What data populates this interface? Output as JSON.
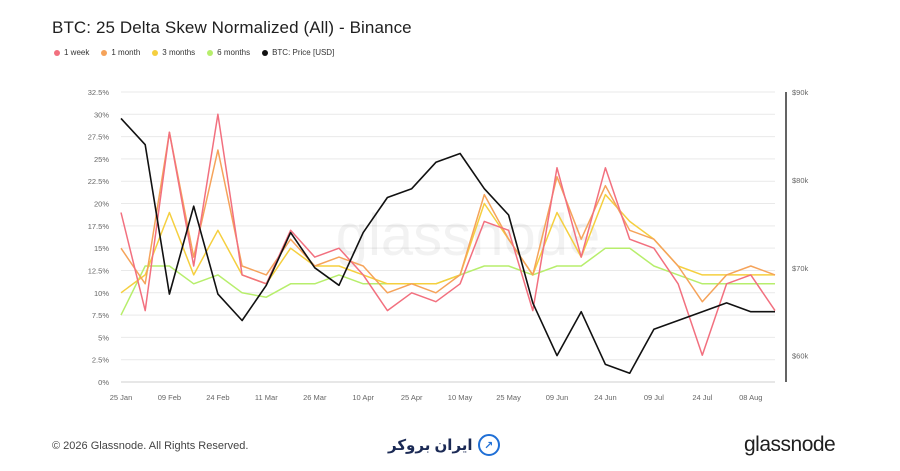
{
  "header": {
    "title": "BTC: 25 Delta Skew Normalized (All) - Binance"
  },
  "legend": [
    {
      "label": "1 week",
      "color": "#f2707f"
    },
    {
      "label": "1 month",
      "color": "#f5a35a"
    },
    {
      "label": "3 months",
      "color": "#f5cf3f"
    },
    {
      "label": "6 months",
      "color": "#b7ee6c"
    },
    {
      "label": "BTC: Price [USD]",
      "color": "#111111"
    }
  ],
  "footer": {
    "copyright": "© 2026 Glassnode. All Rights Reserved.",
    "brand_text": "ایران بروکر",
    "brand_icon": "trend-up-icon",
    "logo": "glassnode"
  },
  "chart_data": {
    "type": "line",
    "title": "BTC: 25 Delta Skew Normalized (All) - Binance",
    "x_ticks": [
      "25 Jan",
      "09 Feb",
      "24 Feb",
      "11 Mar",
      "26 Mar",
      "10 Apr",
      "25 Apr",
      "10 May",
      "25 May",
      "09 Jun",
      "24 Jun",
      "09 Jul",
      "24 Jul",
      "08 Aug"
    ],
    "y_left_ticks": [
      "0%",
      "2.5%",
      "5%",
      "7.5%",
      "10%",
      "12.5%",
      "15%",
      "17.5%",
      "20%",
      "22.5%",
      "25%",
      "27.5%",
      "30%",
      "32.5%"
    ],
    "y_left_range": [
      0,
      32.5
    ],
    "y_right_ticks": [
      "$60k",
      "$70k",
      "$80k",
      "$90k"
    ],
    "y_right_range": [
      57000,
      90000
    ],
    "x_dates": [
      "25 Jan",
      "01 Feb",
      "09 Feb",
      "16 Feb",
      "24 Feb",
      "03 Mar",
      "11 Mar",
      "18 Mar",
      "26 Mar",
      "03 Apr",
      "10 Apr",
      "18 Apr",
      "25 Apr",
      "03 May",
      "10 May",
      "18 May",
      "25 May",
      "02 Jun",
      "09 Jun",
      "17 Jun",
      "24 Jun",
      "02 Jul",
      "09 Jul",
      "17 Jul",
      "24 Jul",
      "01 Aug",
      "08 Aug",
      "15 Aug"
    ],
    "series": [
      {
        "name": "1 week",
        "color": "#f2707f",
        "values": [
          19,
          8,
          28,
          13,
          30,
          12,
          11,
          17,
          14,
          15,
          12,
          8,
          10,
          9,
          11,
          18,
          17,
          8,
          24,
          14,
          24,
          16,
          15,
          11,
          3,
          11,
          12,
          8
        ]
      },
      {
        "name": "1 month",
        "color": "#f5a35a",
        "values": [
          15,
          11,
          28,
          14,
          26,
          13,
          12,
          16,
          13,
          14,
          13,
          10,
          11,
          10,
          12,
          21,
          16,
          12,
          23,
          16,
          22,
          17,
          16,
          13,
          9,
          12,
          13,
          12
        ]
      },
      {
        "name": "3 months",
        "color": "#f5cf3f",
        "values": [
          10,
          12,
          19,
          12,
          17,
          12,
          11,
          15,
          13,
          13,
          12,
          11,
          11,
          11,
          12,
          20,
          16,
          12,
          19,
          14,
          21,
          18,
          16,
          13,
          12,
          12,
          12,
          12
        ]
      },
      {
        "name": "6 months",
        "color": "#b7ee6c",
        "values": [
          7.5,
          13,
          13,
          11,
          12,
          10,
          9.5,
          11,
          11,
          12,
          11,
          11,
          11,
          11,
          12,
          13,
          13,
          12,
          13,
          13,
          15,
          15,
          13,
          12,
          11,
          11,
          11,
          11
        ]
      }
    ],
    "price_series": {
      "name": "BTC: Price [USD]",
      "color": "#111111",
      "axis": "right",
      "values": [
        87000,
        84000,
        67000,
        77000,
        67000,
        64000,
        68000,
        74000,
        70000,
        68000,
        74000,
        78000,
        79000,
        82000,
        83000,
        79000,
        76000,
        66000,
        60000,
        65000,
        59000,
        58000,
        63000,
        64000,
        65000,
        66000,
        65000,
        65000
      ]
    },
    "grid": "horizontal",
    "legend_position": "top-left"
  }
}
